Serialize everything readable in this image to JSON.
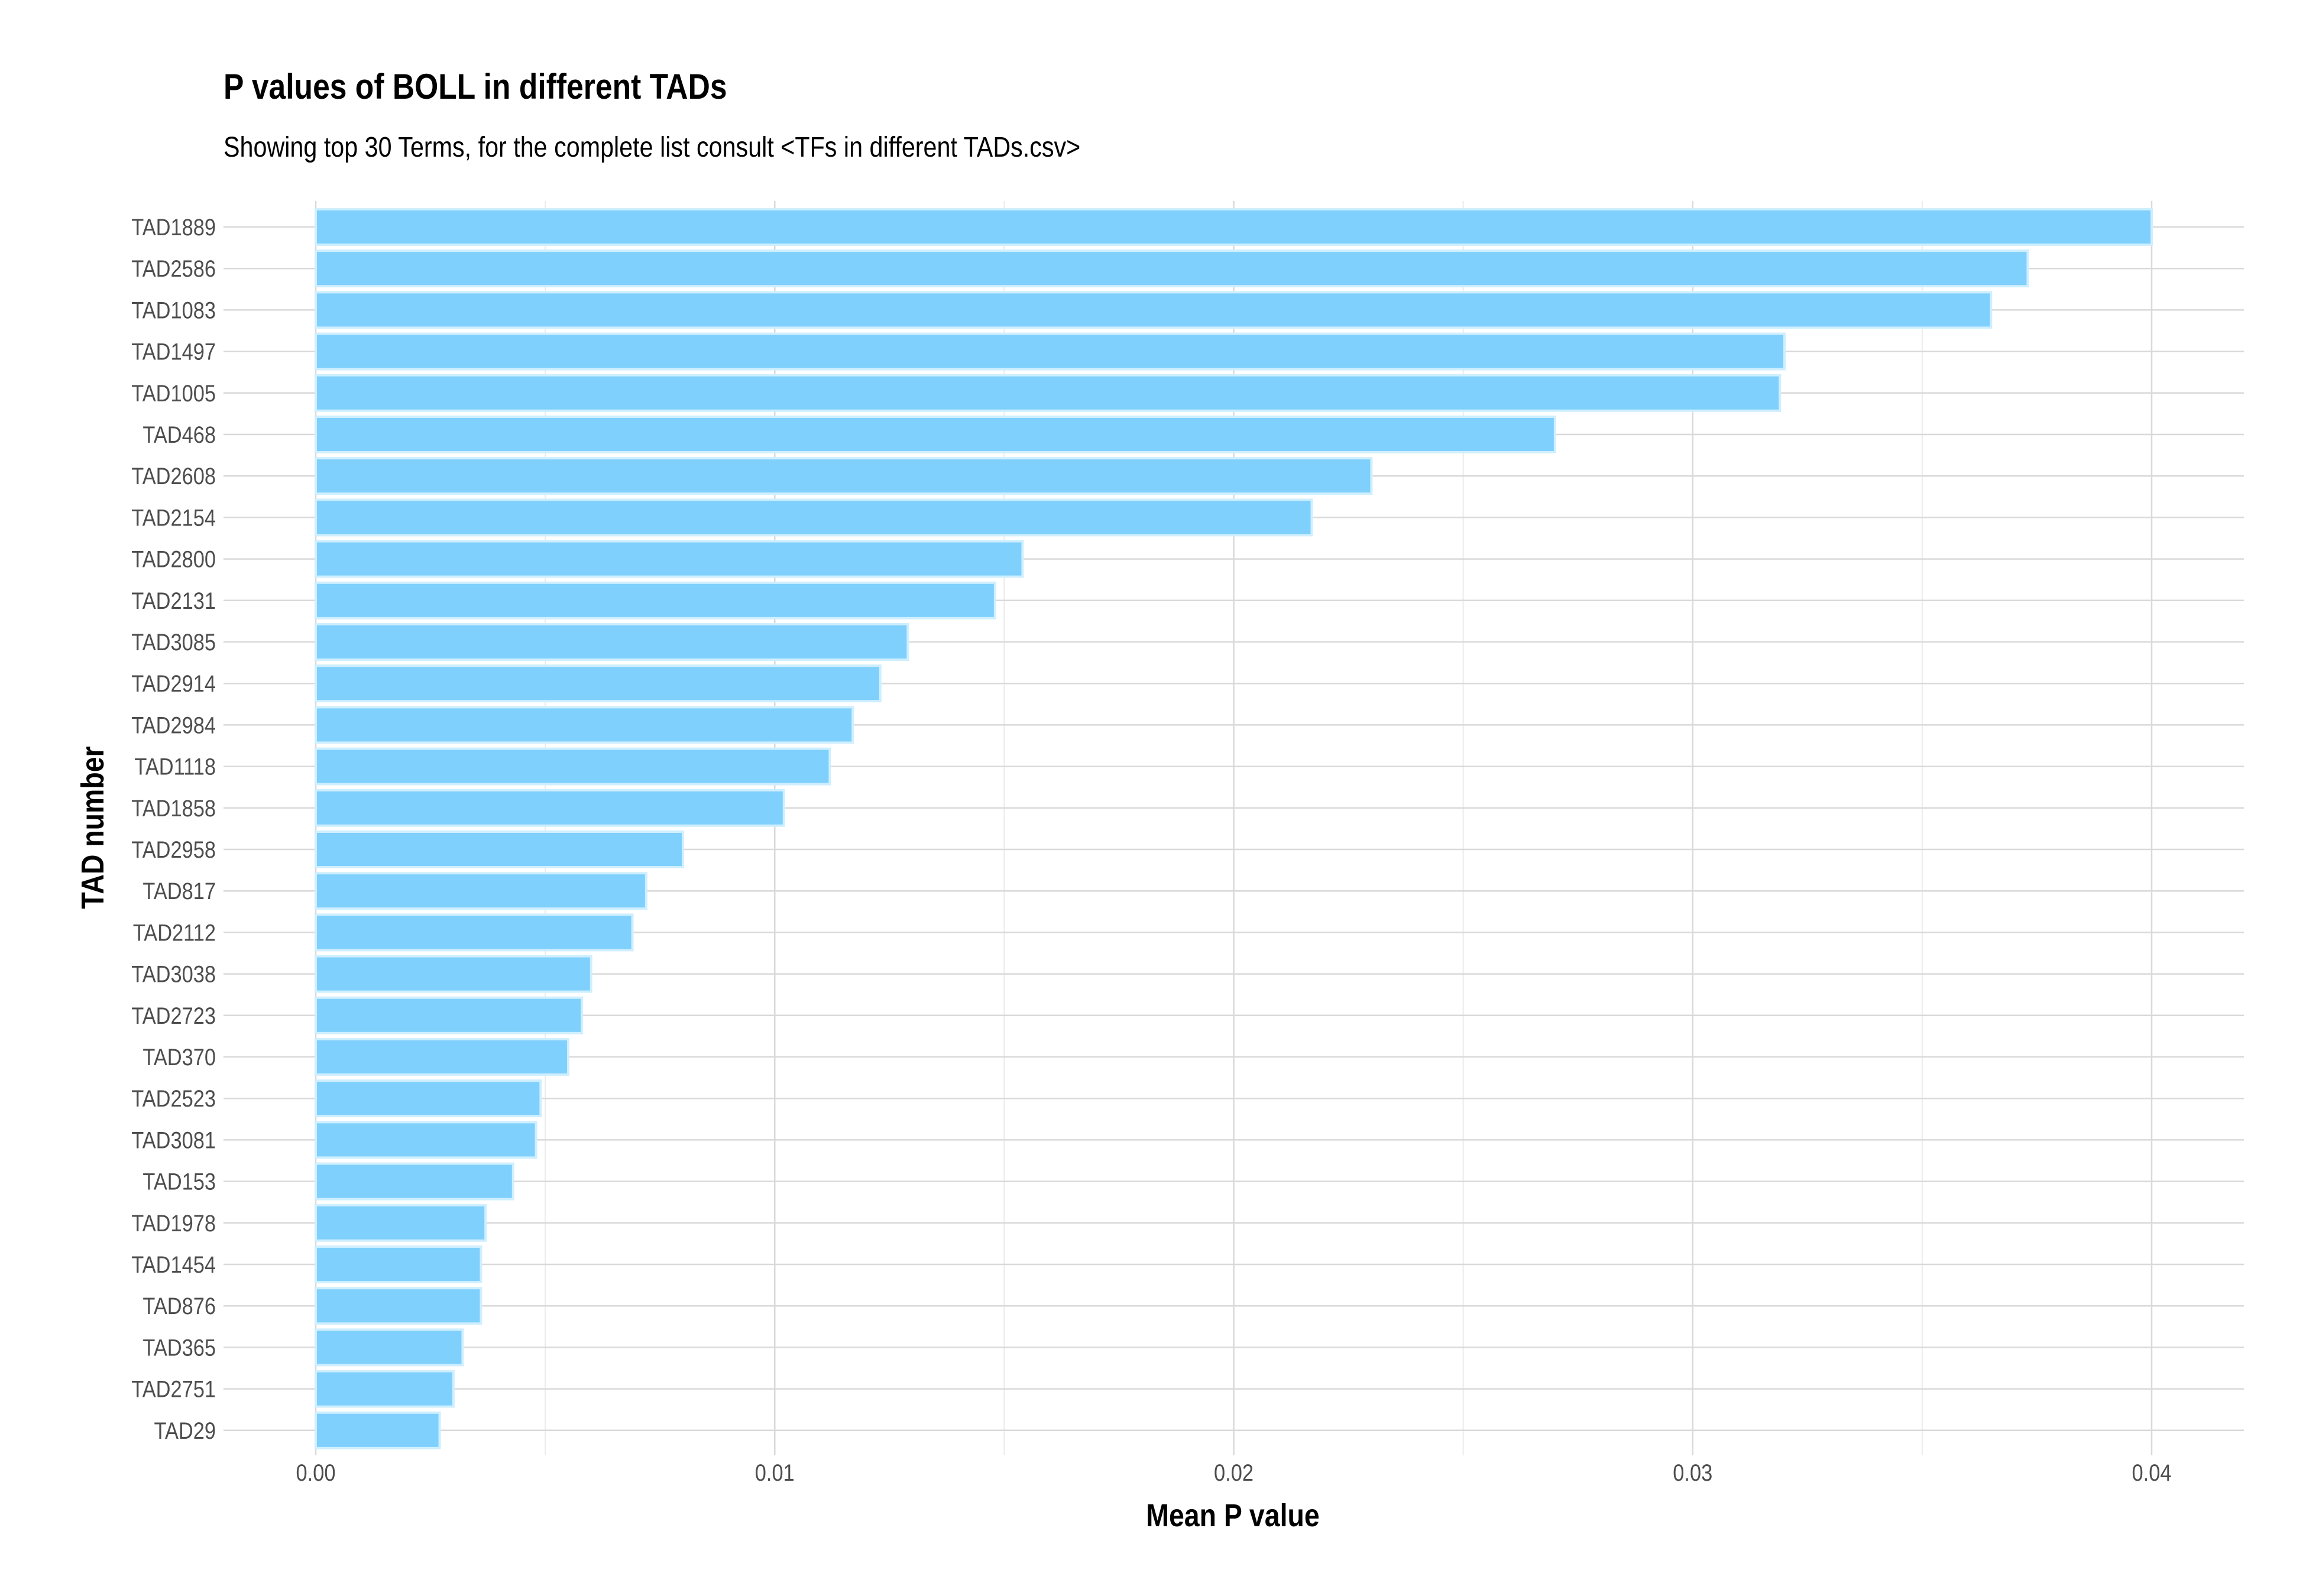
{
  "chart_data": {
    "type": "bar",
    "orientation": "horizontal",
    "title": "P values of BOLL in different TADs",
    "subtitle": "Showing top 30 Terms, for the complete list consult <TFs in different TADs.csv>",
    "xlabel": "Mean P value",
    "ylabel": "TAD number",
    "xlim": [
      0,
      0.04
    ],
    "xticks": [
      "0.00",
      "0.01",
      "0.02",
      "0.03",
      "0.04"
    ],
    "grid": true,
    "bar_color": "#7FD0FC",
    "bar_edge_color": "#CFEFFF",
    "categories": [
      "TAD1889",
      "TAD2586",
      "TAD1083",
      "TAD1497",
      "TAD1005",
      "TAD468",
      "TAD2608",
      "TAD2154",
      "TAD2800",
      "TAD2131",
      "TAD3085",
      "TAD2914",
      "TAD2984",
      "TAD1118",
      "TAD1858",
      "TAD2958",
      "TAD817",
      "TAD2112",
      "TAD3038",
      "TAD2723",
      "TAD370",
      "TAD2523",
      "TAD3081",
      "TAD153",
      "TAD1978",
      "TAD1454",
      "TAD876",
      "TAD365",
      "TAD2751",
      "TAD29"
    ],
    "values": [
      0.04,
      0.0373,
      0.0365,
      0.032,
      0.0319,
      0.027,
      0.023,
      0.0217,
      0.0154,
      0.0148,
      0.0129,
      0.0123,
      0.0117,
      0.0112,
      0.0102,
      0.008,
      0.0072,
      0.0069,
      0.006,
      0.0058,
      0.0055,
      0.0049,
      0.0048,
      0.0043,
      0.0037,
      0.0036,
      0.0036,
      0.0032,
      0.003,
      0.0027
    ]
  }
}
